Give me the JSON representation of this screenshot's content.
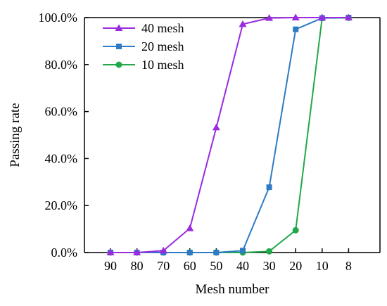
{
  "chart_data": {
    "type": "line",
    "categories": [
      "90",
      "80",
      "70",
      "60",
      "50",
      "40",
      "30",
      "20",
      "10",
      "8"
    ],
    "xlabel": "Mesh number",
    "ylabel": "Passing rate",
    "ylim": [
      0,
      100
    ],
    "yticks": [
      "0.0%",
      "20.0%",
      "40.0%",
      "60.0%",
      "80.0%",
      "100.0%"
    ],
    "grid": false,
    "legend_position": "top-left",
    "series": [
      {
        "name": "40 mesh",
        "color": "#9A2BE0",
        "marker": "triangle",
        "values": [
          0,
          0,
          0.8,
          10.3,
          53.2,
          97.2,
          99.8,
          100,
          100,
          100
        ]
      },
      {
        "name": "20 mesh",
        "color": "#2E7BC3",
        "marker": "square",
        "values": [
          0,
          0,
          0,
          0,
          0,
          0.8,
          27.8,
          95,
          99.8,
          100
        ]
      },
      {
        "name": "10 mesh",
        "color": "#21A84A",
        "marker": "circle",
        "values": [
          0,
          0,
          0,
          0,
          0,
          0,
          0.5,
          9.5,
          99.8,
          99.9
        ]
      }
    ]
  }
}
